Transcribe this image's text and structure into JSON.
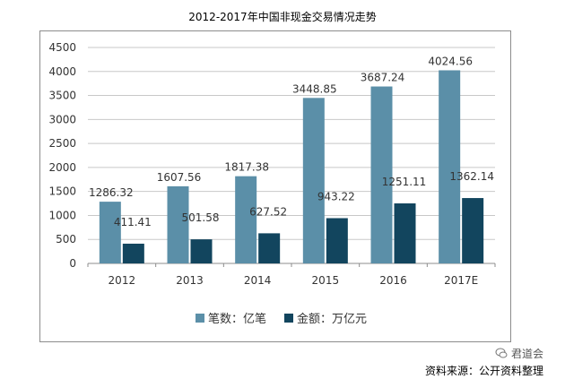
{
  "colors": {
    "series1": "#5b8fa8",
    "series2": "#12455e",
    "grid": "#c8c8c8",
    "axis": "#8c8c8c",
    "text": "#333333"
  },
  "chart_data": {
    "type": "bar",
    "title": "2012-2017年中国非现金交易情况走势",
    "categories": [
      "2012",
      "2013",
      "2014",
      "2015",
      "2016",
      "2017E"
    ],
    "series": [
      {
        "name": "笔数：亿笔",
        "values": [
          1286.32,
          1607.56,
          1817.38,
          3448.85,
          3687.24,
          4024.56
        ],
        "labels": [
          "1286.32",
          "1607.56",
          "1817.38",
          "3448.85",
          "3687.24",
          "4024.56"
        ]
      },
      {
        "name": "金额：万亿元",
        "values": [
          411.41,
          501.58,
          627.52,
          943.22,
          1251.11,
          1362.14
        ],
        "labels": [
          "411.41",
          "501.58",
          "627.52",
          "943.22",
          "1251.11",
          "1362.14"
        ]
      }
    ],
    "yticks": [
      "0",
      "500",
      "1000",
      "1500",
      "2000",
      "2500",
      "3000",
      "3500",
      "4000",
      "4500"
    ],
    "ylim": [
      0,
      4500
    ],
    "grid": true,
    "legend_position": "bottom"
  },
  "watermark": "君道会",
  "source": "资料来源：公开资料整理"
}
